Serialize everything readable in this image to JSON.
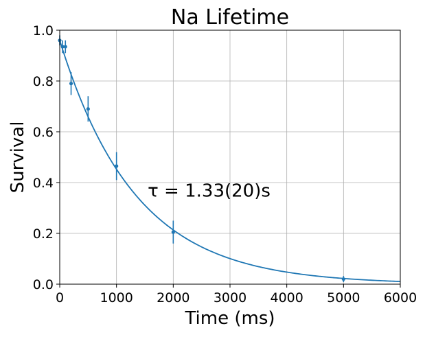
{
  "chart_data": {
    "type": "scatter",
    "title": "Na Lifetime",
    "xlabel": "Time (ms)",
    "ylabel": "Survival",
    "xlim": [
      0,
      6000
    ],
    "ylim": [
      0,
      1.0
    ],
    "x_ticks": [
      0,
      1000,
      2000,
      3000,
      4000,
      5000,
      6000
    ],
    "x_tick_labels": [
      "0",
      "1000",
      "2000",
      "3000",
      "4000",
      "5000",
      "6000"
    ],
    "y_ticks": [
      0,
      0.2,
      0.4,
      0.6,
      0.8,
      1.0
    ],
    "y_tick_labels": [
      "0.0",
      "0.2",
      "0.4",
      "0.6",
      "0.8",
      "1.0"
    ],
    "grid": true,
    "color": "#1f77b4",
    "series": [
      {
        "kind": "errorbar",
        "points": [
          {
            "x": 0,
            "y": 0.96,
            "yerr": 0.02
          },
          {
            "x": 50,
            "y": 0.935,
            "yerr": 0.025
          },
          {
            "x": 100,
            "y": 0.935,
            "yerr": 0.025
          },
          {
            "x": 200,
            "y": 0.79,
            "yerr": 0.045
          },
          {
            "x": 500,
            "y": 0.69,
            "yerr": 0.05
          },
          {
            "x": 1000,
            "y": 0.465,
            "yerr": 0.055
          },
          {
            "x": 2000,
            "y": 0.205,
            "yerr": 0.045
          },
          {
            "x": 5000,
            "y": 0.02,
            "yerr": 0.012
          }
        ]
      },
      {
        "kind": "fit-curve",
        "model": "exponential decay",
        "amplitude": 0.96,
        "tau_ms": 1330
      }
    ],
    "annotation": {
      "text": "τ = 1.33(20)s",
      "x": 1550,
      "y": 0.345
    }
  }
}
